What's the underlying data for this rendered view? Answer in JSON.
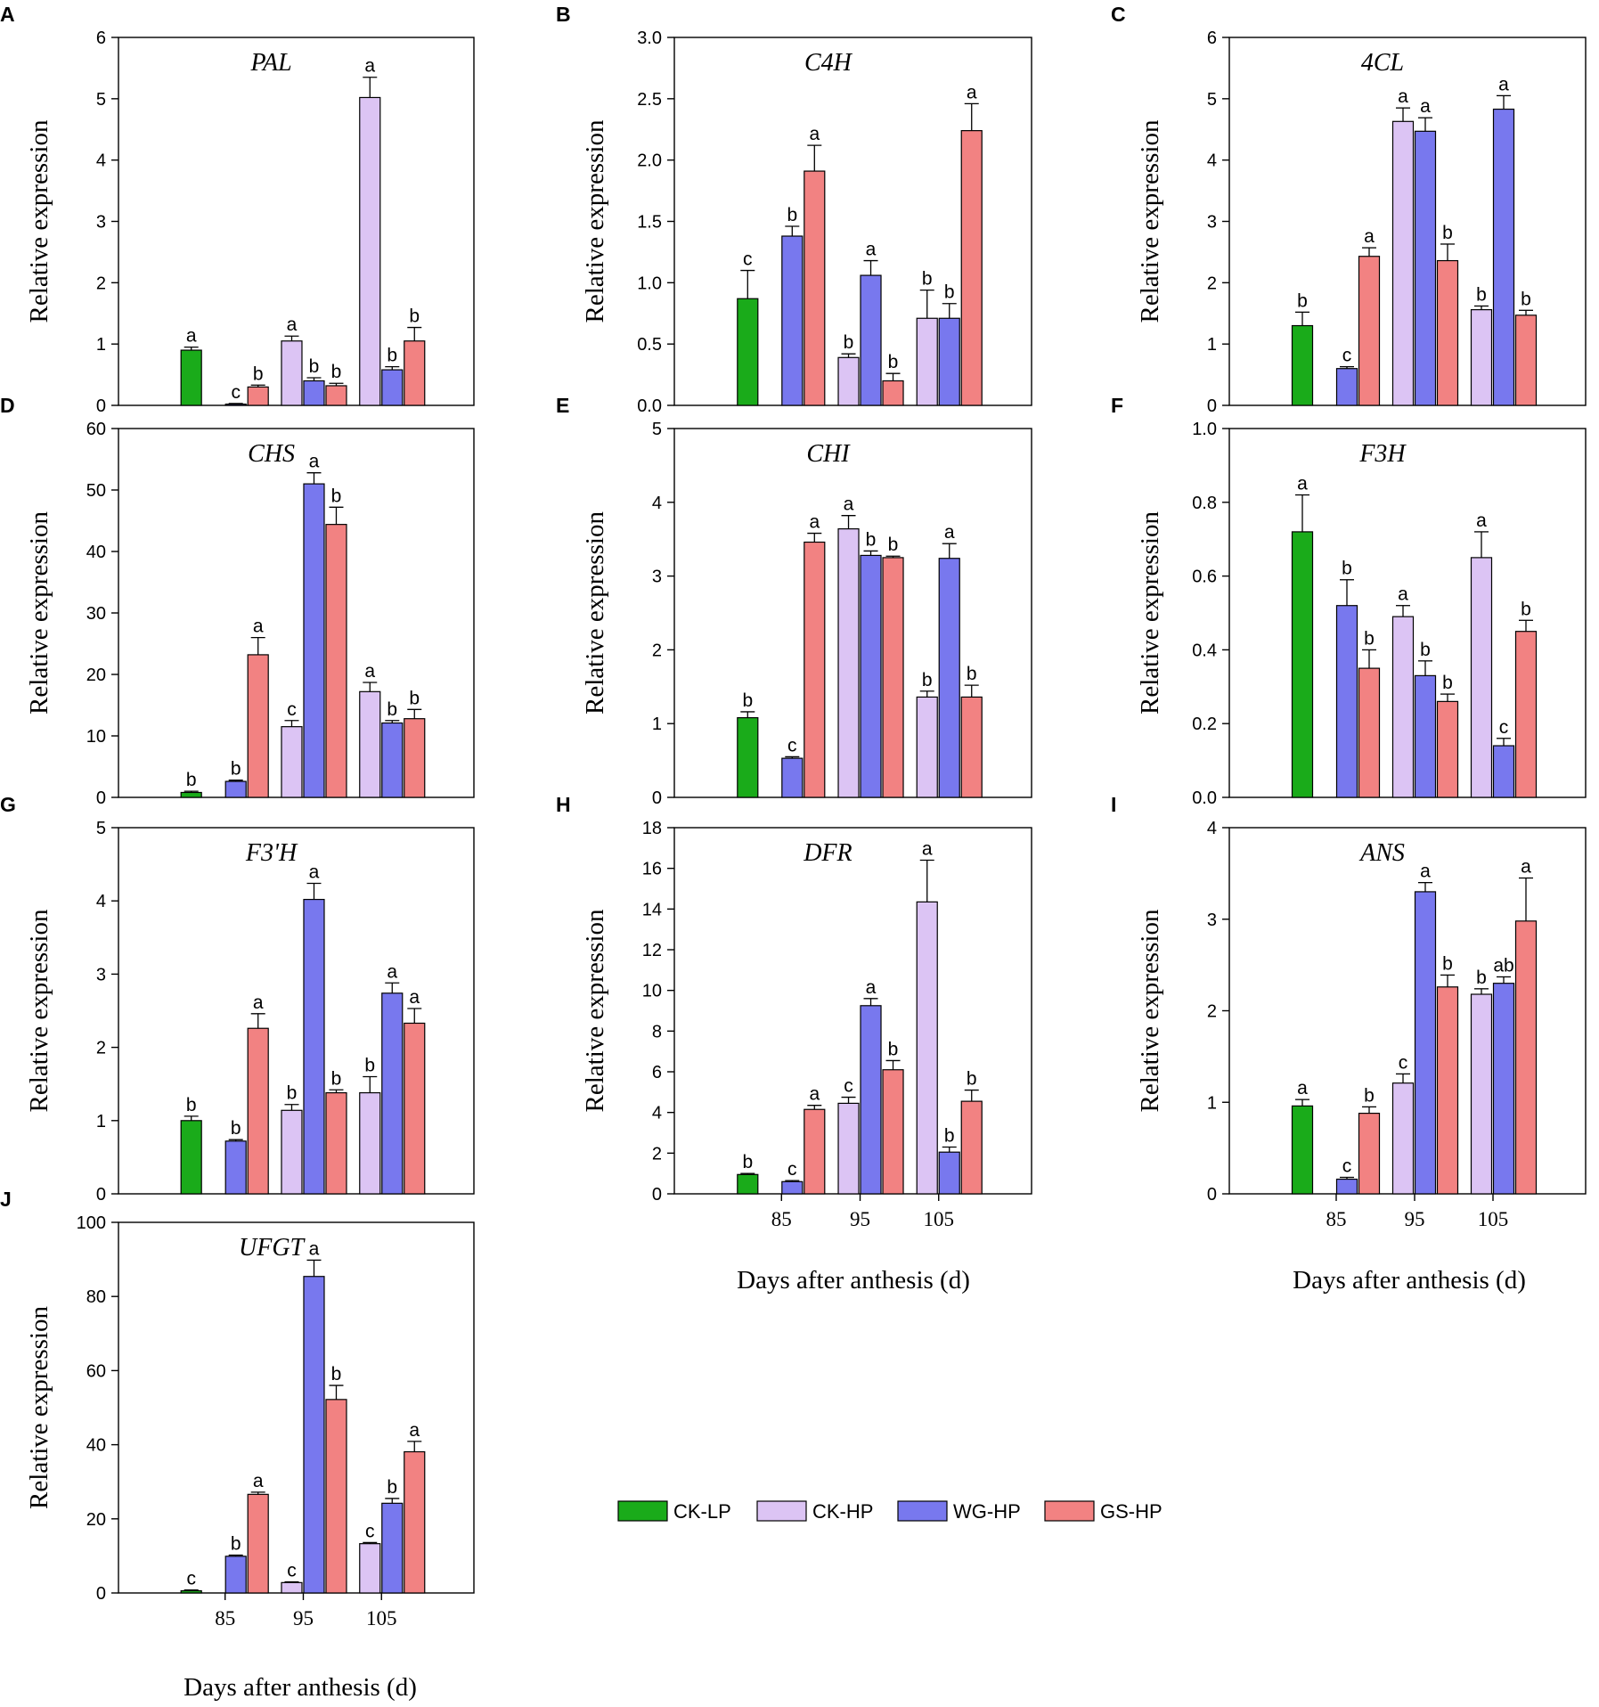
{
  "chart_data": {
    "type": "bar",
    "series_names": [
      "CK-LP",
      "CK-HP",
      "WG-HP",
      "GS-HP"
    ],
    "series_colors": [
      "#1aab1a",
      "#dcc4f4",
      "#7878ee",
      "#f28282"
    ],
    "categories": [
      "85",
      "95",
      "105"
    ],
    "xlabel": "Days after anthesis (d)",
    "ylabel": "Relative expression",
    "panels": [
      {
        "letter": "A",
        "gene": "PAL",
        "ylim": [
          0,
          6
        ],
        "yticks": [
          "0",
          "1",
          "2",
          "3",
          "4",
          "5",
          "6"
        ],
        "show_x_axis": false,
        "values": [
          [
            0.9,
            null,
            0.02,
            0.3
          ],
          [
            null,
            1.05,
            0.4,
            0.32
          ],
          [
            null,
            5.02,
            0.58,
            1.05
          ]
        ],
        "errors": [
          [
            0.05,
            null,
            0.01,
            0.03
          ],
          [
            null,
            0.08,
            0.05,
            0.04
          ],
          [
            null,
            0.33,
            0.05,
            0.22
          ]
        ],
        "letters": [
          [
            "a",
            null,
            "c",
            "b"
          ],
          [
            null,
            "a",
            "b",
            "b"
          ],
          [
            null,
            "a",
            "b",
            "b"
          ]
        ]
      },
      {
        "letter": "B",
        "gene": "C4H",
        "ylim": [
          0,
          3
        ],
        "yticks": [
          "0.0",
          "0.5",
          "1.0",
          "1.5",
          "2.0",
          "2.5",
          "3.0"
        ],
        "show_x_axis": false,
        "values": [
          [
            0.87,
            null,
            1.38,
            1.91
          ],
          [
            null,
            0.39,
            1.06,
            0.2
          ],
          [
            null,
            0.71,
            0.71,
            2.24
          ]
        ],
        "errors": [
          [
            0.23,
            null,
            0.08,
            0.21
          ],
          [
            null,
            0.03,
            0.12,
            0.06
          ],
          [
            null,
            0.23,
            0.12,
            0.22
          ]
        ],
        "letters": [
          [
            "c",
            null,
            "b",
            "a"
          ],
          [
            null,
            "b",
            "a",
            "b"
          ],
          [
            null,
            "b",
            "b",
            "a"
          ]
        ]
      },
      {
        "letter": "C",
        "gene": "4CL",
        "ylim": [
          0,
          6
        ],
        "yticks": [
          "0",
          "1",
          "2",
          "3",
          "4",
          "5",
          "6"
        ],
        "show_x_axis": false,
        "values": [
          [
            1.3,
            null,
            0.6,
            2.43
          ],
          [
            null,
            4.63,
            4.47,
            2.36
          ],
          [
            null,
            1.56,
            4.83,
            1.47
          ]
        ],
        "errors": [
          [
            0.22,
            null,
            0.03,
            0.14
          ],
          [
            null,
            0.22,
            0.22,
            0.27
          ],
          [
            null,
            0.06,
            0.22,
            0.08
          ]
        ],
        "letters": [
          [
            "b",
            null,
            "c",
            "a"
          ],
          [
            null,
            "a",
            "a",
            "b"
          ],
          [
            null,
            "b",
            "a",
            "b"
          ]
        ]
      },
      {
        "letter": "D",
        "gene": "CHS",
        "ylim": [
          0,
          60
        ],
        "yticks": [
          "0",
          "10",
          "20",
          "30",
          "40",
          "50",
          "60"
        ],
        "show_x_axis": false,
        "values": [
          [
            0.8,
            null,
            2.6,
            23.2
          ],
          [
            null,
            11.5,
            51.0,
            44.4
          ],
          [
            null,
            17.2,
            12.1,
            12.8
          ]
        ],
        "errors": [
          [
            0.2,
            null,
            0.2,
            2.8
          ],
          [
            null,
            1.0,
            1.8,
            2.8
          ],
          [
            null,
            1.5,
            0.4,
            1.5
          ]
        ],
        "letters": [
          [
            "b",
            null,
            "b",
            "a"
          ],
          [
            null,
            "c",
            "a",
            "b"
          ],
          [
            null,
            "a",
            "b",
            "b"
          ]
        ]
      },
      {
        "letter": "E",
        "gene": "CHI",
        "ylim": [
          0,
          5
        ],
        "yticks": [
          "0",
          "1",
          "2",
          "3",
          "4",
          "5"
        ],
        "show_x_axis": false,
        "values": [
          [
            1.08,
            null,
            0.53,
            3.46
          ],
          [
            null,
            3.64,
            3.28,
            3.25
          ],
          [
            null,
            1.36,
            3.24,
            1.36
          ]
        ],
        "errors": [
          [
            0.08,
            null,
            0.02,
            0.12
          ],
          [
            null,
            0.18,
            0.06,
            0.02
          ],
          [
            null,
            0.08,
            0.2,
            0.16
          ]
        ],
        "letters": [
          [
            "b",
            null,
            "c",
            "a"
          ],
          [
            null,
            "a",
            "b",
            "b"
          ],
          [
            null,
            "b",
            "a",
            "b"
          ]
        ]
      },
      {
        "letter": "F",
        "gene": "F3H",
        "ylim": [
          0,
          1
        ],
        "yticks": [
          "0.0",
          "0.2",
          "0.4",
          "0.6",
          "0.8",
          "1.0"
        ],
        "show_x_axis": false,
        "values": [
          [
            0.72,
            null,
            0.52,
            0.35
          ],
          [
            null,
            0.49,
            0.33,
            0.26
          ],
          [
            null,
            0.65,
            0.14,
            0.45
          ]
        ],
        "errors": [
          [
            0.1,
            null,
            0.07,
            0.05
          ],
          [
            null,
            0.03,
            0.04,
            0.02
          ],
          [
            null,
            0.07,
            0.02,
            0.03
          ]
        ],
        "letters": [
          [
            "a",
            null,
            "b",
            "b"
          ],
          [
            null,
            "a",
            "b",
            "b"
          ],
          [
            null,
            "a",
            "c",
            "b"
          ]
        ]
      },
      {
        "letter": "G",
        "gene": "F3'H",
        "ylim": [
          0,
          5
        ],
        "yticks": [
          "0",
          "1",
          "2",
          "3",
          "4",
          "5"
        ],
        "show_x_axis": false,
        "values": [
          [
            1.0,
            null,
            0.72,
            2.26
          ],
          [
            null,
            1.14,
            4.02,
            1.38
          ],
          [
            null,
            1.38,
            2.74,
            2.33
          ]
        ],
        "errors": [
          [
            0.06,
            null,
            0.02,
            0.2
          ],
          [
            null,
            0.08,
            0.22,
            0.04
          ],
          [
            null,
            0.22,
            0.14,
            0.2
          ]
        ],
        "letters": [
          [
            "b",
            null,
            "b",
            "a"
          ],
          [
            null,
            "b",
            "a",
            "b"
          ],
          [
            null,
            "b",
            "a",
            "a"
          ]
        ]
      },
      {
        "letter": "H",
        "gene": "DFR",
        "ylim": [
          0,
          18
        ],
        "yticks": [
          "0",
          "2",
          "4",
          "6",
          "8",
          "10",
          "12",
          "14",
          "16",
          "18"
        ],
        "show_x_axis": true,
        "values": [
          [
            0.95,
            null,
            0.6,
            4.15
          ],
          [
            null,
            4.45,
            9.25,
            6.1
          ],
          [
            null,
            14.35,
            2.05,
            4.55
          ]
        ],
        "errors": [
          [
            0.05,
            null,
            0.05,
            0.2
          ],
          [
            null,
            0.3,
            0.35,
            0.45
          ],
          [
            null,
            2.05,
            0.25,
            0.55
          ]
        ],
        "letters": [
          [
            "b",
            null,
            "c",
            "a"
          ],
          [
            null,
            "c",
            "a",
            "b"
          ],
          [
            null,
            "a",
            "b",
            "b"
          ]
        ]
      },
      {
        "letter": "I",
        "gene": "ANS",
        "ylim": [
          0,
          4
        ],
        "yticks": [
          "0",
          "1",
          "2",
          "3",
          "4"
        ],
        "show_x_axis": true,
        "values": [
          [
            0.96,
            null,
            0.16,
            0.88
          ],
          [
            null,
            1.21,
            3.3,
            2.26
          ],
          [
            null,
            2.18,
            2.3,
            2.98
          ]
        ],
        "errors": [
          [
            0.07,
            null,
            0.02,
            0.07
          ],
          [
            null,
            0.1,
            0.1,
            0.13
          ],
          [
            null,
            0.06,
            0.07,
            0.47
          ]
        ],
        "letters": [
          [
            "a",
            null,
            "c",
            "b"
          ],
          [
            null,
            "c",
            "a",
            "b"
          ],
          [
            null,
            "b",
            "ab",
            "a"
          ]
        ]
      },
      {
        "letter": "J",
        "gene": "UFGT",
        "ylim": [
          0,
          100
        ],
        "yticks": [
          "0",
          "20",
          "40",
          "60",
          "80",
          "100"
        ],
        "show_x_axis": true,
        "values": [
          [
            0.6,
            null,
            9.9,
            26.6
          ],
          [
            null,
            2.8,
            85.4,
            52.2
          ],
          [
            null,
            13.3,
            24.2,
            38.1
          ]
        ],
        "errors": [
          [
            0.2,
            null,
            0.3,
            0.6
          ],
          [
            null,
            0.2,
            4.4,
            3.8
          ],
          [
            null,
            0.3,
            1.3,
            2.8
          ]
        ],
        "letters": [
          [
            "c",
            null,
            "b",
            "a"
          ],
          [
            null,
            "c",
            "a",
            "b"
          ],
          [
            null,
            "c",
            "b",
            "a"
          ]
        ]
      }
    ]
  }
}
